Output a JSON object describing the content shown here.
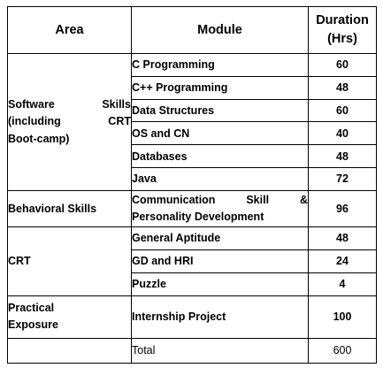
{
  "table": {
    "headers": {
      "area": "Area",
      "module": "Module",
      "duration_line1": "Duration",
      "duration_line2": "(Hrs)"
    },
    "groups": [
      {
        "area_lines": [
          "Software Skills",
          "(including CRT",
          "Boot-camp)"
        ],
        "rows": [
          {
            "module": "C Programming",
            "duration": "60"
          },
          {
            "module": "C++ Programming",
            "duration": "48"
          },
          {
            "module": "Data Structures",
            "duration": "60"
          },
          {
            "module": "OS and CN",
            "duration": "40"
          },
          {
            "module": "Databases",
            "duration": "48"
          },
          {
            "module": "Java",
            "duration": "72"
          }
        ]
      },
      {
        "area_lines": [
          "Behavioral Skills"
        ],
        "rows": [
          {
            "module_lines": [
              "Communication Skill &",
              "Personality Development"
            ],
            "duration": "96"
          }
        ]
      },
      {
        "area_lines": [
          "CRT"
        ],
        "rows": [
          {
            "module": "General Aptitude",
            "duration": "48"
          },
          {
            "module": "GD and HRI",
            "duration": "24"
          },
          {
            "module": "Puzzle",
            "duration": "4"
          }
        ]
      },
      {
        "area_lines": [
          "Practical",
          "Exposure"
        ],
        "rows": [
          {
            "module": "Internship Project",
            "duration": "100"
          }
        ]
      }
    ],
    "total": {
      "label": "Total",
      "value": "600"
    }
  }
}
